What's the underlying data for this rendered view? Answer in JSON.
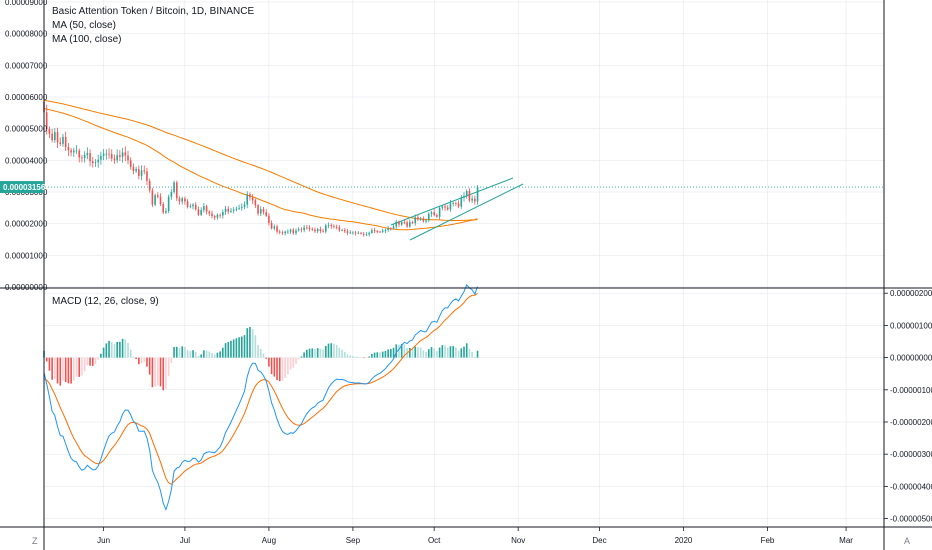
{
  "header": {
    "title": "Basic Attention Token / Bitcoin, 1D, BINANCE",
    "indicators": [
      "MA (50, close)",
      "MA (100, close)"
    ]
  },
  "macd_header": {
    "label": "MACD (12, 26, close, 9)"
  },
  "corner_left": "Z",
  "corner_right": "A",
  "price_badge": "0.00003156",
  "colors": {
    "up": "#26a69a",
    "down": "#ef5350",
    "hist_up_light": "#b2dfdb",
    "hist_down_light": "#ffcdd2",
    "ma": "#f57c00",
    "macd": "#2196f3",
    "signal": "#ff6d00",
    "price_line": "#26a69a",
    "grid": "#e0e3eb"
  },
  "chart_data": [
    {
      "type": "candlestick",
      "title": "Basic Attention Token / Bitcoin, 1D, BINANCE",
      "y_ticks": [
        "0.00009000",
        "0.00008000",
        "0.00007000",
        "0.00006000",
        "0.00005000",
        "0.00004000",
        "0.00003000",
        "0.00002000",
        "0.00001000",
        "0.00000000"
      ],
      "ylim": [
        0,
        9e-05
      ],
      "last_price": 3.156e-05,
      "x_ticks": [
        "Jun",
        "Jul",
        "Aug",
        "Sep",
        "Oct",
        "Nov",
        "Dec",
        "2020",
        "Feb",
        "Mar"
      ],
      "x_tick_days": [
        22,
        52,
        83,
        114,
        144,
        175,
        205,
        236,
        267,
        296
      ],
      "xlim": [
        0,
        310
      ],
      "close": [
        5.52e-05,
        4.99e-05,
        4.84e-05,
        4.64e-05,
        4.89e-05,
        4.57e-05,
        4.52e-05,
        4.74e-05,
        4.42e-05,
        4.32e-05,
        4.25e-05,
        4.31e-05,
        4.31e-05,
        4.09e-05,
        4.07e-05,
        4.17e-05,
        4.23e-05,
        3.97e-05,
        3.91e-05,
        3.94e-05,
        4.02e-05,
        4.14e-05,
        4.21e-05,
        4.21e-05,
        4.2e-05,
        4.06e-05,
        4e-05,
        4.16e-05,
        4.11e-05,
        4.25e-05,
        4.15e-05,
        4e-05,
        3.79e-05,
        3.66e-05,
        3.72e-05,
        3.51e-05,
        3.68e-05,
        3.65e-05,
        3.35e-05,
        3.05e-05,
        2.6e-05,
        2.9e-05,
        2.85e-05,
        2.62e-05,
        2.35e-05,
        2.4e-05,
        2.85e-05,
        3e-05,
        3.3e-05,
        2.8e-05,
        2.7e-05,
        2.8e-05,
        2.7e-05,
        2.53e-05,
        2.55e-05,
        2.6e-05,
        2.45e-05,
        2.28e-05,
        2.43e-05,
        2.55e-05,
        2.38e-05,
        2.32e-05,
        2.24e-05,
        2.19e-05,
        2.28e-05,
        2.26e-05,
        2.37e-05,
        2.47e-05,
        2.38e-05,
        2.41e-05,
        2.44e-05,
        2.47e-05,
        2.5e-05,
        2.53e-05,
        2.6e-05,
        2.93e-05,
        2.83e-05,
        2.74e-05,
        2.58e-05,
        2.32e-05,
        2.46e-05,
        2.36e-05,
        2.25e-05,
        2.02e-05,
        1.85e-05,
        1.91e-05,
        1.75e-05,
        1.73e-05,
        1.7e-05,
        1.75e-05,
        1.75e-05,
        1.81e-05,
        1.7e-05,
        1.78e-05,
        1.82e-05,
        1.8e-05,
        1.88e-05,
        1.87e-05,
        1.83e-05,
        1.81e-05,
        1.76e-05,
        1.83e-05,
        1.77e-05,
        1.75e-05,
        1.94e-05,
        1.96e-05,
        1.92e-05,
        1.9e-05,
        1.88e-05,
        1.79e-05,
        1.8e-05,
        1.76e-05,
        1.71e-05,
        1.72e-05,
        1.72e-05,
        1.7e-05,
        1.71e-05,
        1.68e-05,
        1.65e-05,
        1.66e-05,
        1.71e-05,
        1.79e-05,
        1.77e-05,
        1.75e-05,
        1.74e-05,
        1.78e-05,
        1.8e-05,
        1.86e-05,
        1.85e-05,
        1.91e-05,
        2.06e-05,
        1.97e-05,
        2.05e-05,
        2.04e-05,
        1.91e-05,
        2.05e-05,
        2.02e-05,
        2.2e-05,
        2.13e-05,
        2.17e-05,
        2.07e-05,
        2.11e-05,
        2.31e-05,
        2.36e-05,
        2.27e-05,
        2.22e-05,
        2.5e-05,
        2.55e-05,
        2.51e-05,
        2.45e-05,
        2.64e-05,
        2.65e-05,
        2.64e-05,
        2.54e-05,
        2.82e-05,
        2.87e-05,
        3.03e-05,
        2.73e-05,
        2.79e-05,
        2.7e-05,
        3.16e-05
      ]
    },
    {
      "type": "line",
      "title": "MACD (12, 26, close, 9)",
      "y_ticks": [
        "0.00000200",
        "0.00000100",
        "0.00000000",
        "-0.00000100",
        "-0.00000200",
        "-0.00000300",
        "-0.00000400",
        "-0.00000500"
      ],
      "ylim": [
        -5.2e-06,
        2.1e-06
      ],
      "series": [
        {
          "name": "MACD",
          "values": []
        },
        {
          "name": "Signal",
          "values": []
        },
        {
          "name": "Histogram",
          "values": []
        }
      ]
    }
  ]
}
